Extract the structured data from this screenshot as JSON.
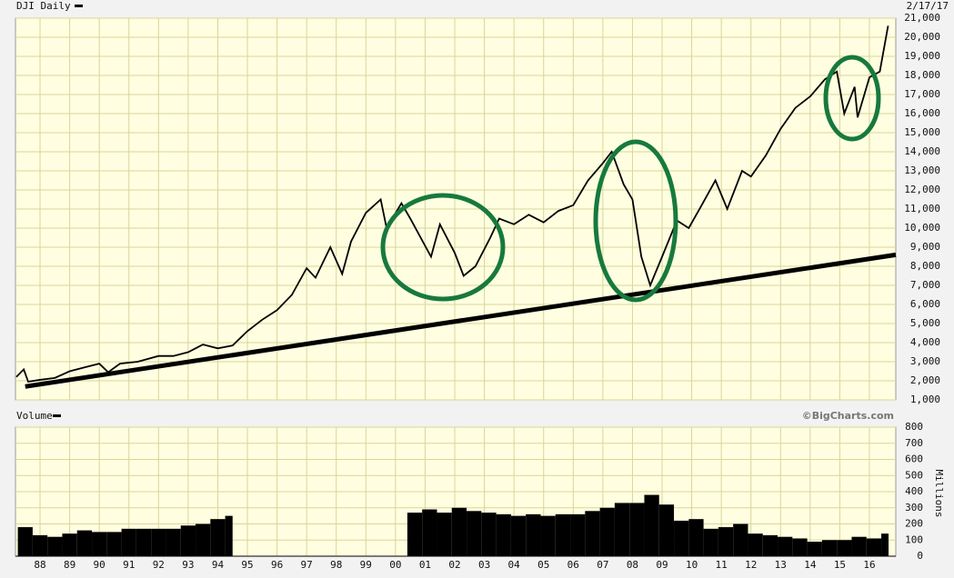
{
  "chart_data": [
    {
      "type": "line",
      "date_label": "2/17/17",
      "x": [
        1987.7,
        1987.95,
        1988.1,
        1988.5,
        1989.0,
        1989.5,
        1990.0,
        1990.5,
        1990.8,
        1991.2,
        1991.8,
        1992.5,
        1993.0,
        1993.5,
        1994.0,
        1994.5,
        1995.0,
        1995.5,
        1996.0,
        1996.5,
        1997.0,
        1997.5,
        1997.8,
        1998.3,
        1998.7,
        1999.0,
        1999.5,
        2000.0,
        2000.2,
        2000.7,
        2001.0,
        2001.7,
        2002.0,
        2002.5,
        2002.8,
        2003.2,
        2003.7,
        2004.0,
        2004.5,
        2005.0,
        2005.5,
        2006.0,
        2006.5,
        2007.0,
        2007.5,
        2007.8,
        2008.2,
        2008.5,
        2008.8,
        2009.1,
        2009.5,
        2010.0,
        2010.4,
        2010.8,
        2011.3,
        2011.7,
        2012.2,
        2012.5,
        2013.0,
        2013.5,
        2014.0,
        2014.5,
        2015.0,
        2015.4,
        2015.65,
        2016.0,
        2016.1,
        2016.5,
        2016.85,
        2017.13
      ],
      "series": [
        {
          "name": "DJI Daily",
          "color": "#000000",
          "values": [
            2200,
            2600,
            1950,
            2050,
            2150,
            2500,
            2700,
            2900,
            2450,
            2900,
            3000,
            3300,
            3300,
            3500,
            3900,
            3700,
            3850,
            4600,
            5200,
            5700,
            6500,
            7900,
            7400,
            9000,
            7600,
            9300,
            10800,
            11500,
            10000,
            11300,
            10500,
            8500,
            10200,
            8700,
            7500,
            8000,
            9500,
            10500,
            10200,
            10700,
            10300,
            10900,
            11200,
            12500,
            13400,
            14000,
            12300,
            11500,
            8500,
            7000,
            8500,
            10400,
            10000,
            11100,
            12500,
            11000,
            13000,
            12700,
            13800,
            15200,
            16300,
            16900,
            17800,
            18200,
            16000,
            17400,
            15800,
            17900,
            18200,
            20600
          ]
        }
      ],
      "trend_line": {
        "x": [
          1988.0,
          2017.39
        ],
        "values": [
          1700,
          8600
        ]
      },
      "xlim": [
        1987.67,
        2017.39
      ],
      "ylim": [
        1000,
        21000
      ],
      "yticks": [
        {
          "value": 1000,
          "label": "1,000"
        },
        {
          "value": 2000,
          "label": "2,000"
        },
        {
          "value": 3000,
          "label": "3,000"
        },
        {
          "value": 4000,
          "label": "4,000"
        },
        {
          "value": 5000,
          "label": "5,000"
        },
        {
          "value": 6000,
          "label": "6,000"
        },
        {
          "value": 7000,
          "label": "7,000"
        },
        {
          "value": 8000,
          "label": "8,000"
        },
        {
          "value": 9000,
          "label": "9,000"
        },
        {
          "value": 10000,
          "label": "10,000"
        },
        {
          "value": 11000,
          "label": "11,000"
        },
        {
          "value": 12000,
          "label": "12,000"
        },
        {
          "value": 13000,
          "label": "13,000"
        },
        {
          "value": 14000,
          "label": "14,000"
        },
        {
          "value": 15000,
          "label": "15,000"
        },
        {
          "value": 16000,
          "label": "16,000"
        },
        {
          "value": 17000,
          "label": "17,000"
        },
        {
          "value": 18000,
          "label": "18,000"
        },
        {
          "value": 19000,
          "label": "19,000"
        },
        {
          "value": 20000,
          "label": "20,000"
        },
        {
          "value": 21000,
          "label": "21,000"
        }
      ],
      "grid": true
    },
    {
      "type": "bar",
      "y_label": "Millions",
      "credit": "©BigCharts.com",
      "x": [
        1987.75,
        1988.25,
        1988.75,
        1989.25,
        1989.75,
        1990.25,
        1990.75,
        1991.25,
        1991.75,
        1992.25,
        1992.75,
        1993.25,
        1993.75,
        1994.25,
        1994.75,
        1995.0,
        2000.9,
        2001.4,
        2001.9,
        2002.4,
        2002.9,
        2003.4,
        2003.9,
        2004.4,
        2004.9,
        2005.4,
        2005.9,
        2006.4,
        2006.9,
        2007.4,
        2007.9,
        2008.4,
        2008.9,
        2009.4,
        2009.9,
        2010.4,
        2010.9,
        2011.4,
        2011.9,
        2012.4,
        2012.9,
        2013.4,
        2013.9,
        2014.4,
        2014.9,
        2015.4,
        2015.9,
        2016.4,
        2016.9
      ],
      "series": [
        {
          "name": "Volume",
          "color": "#000000",
          "values": [
            180,
            130,
            120,
            140,
            160,
            150,
            150,
            170,
            170,
            170,
            170,
            190,
            200,
            230,
            250,
            null,
            270,
            290,
            270,
            300,
            280,
            270,
            260,
            250,
            260,
            250,
            260,
            260,
            280,
            300,
            330,
            330,
            380,
            320,
            220,
            230,
            170,
            180,
            200,
            140,
            130,
            120,
            110,
            90,
            100,
            100,
            120,
            110,
            140
          ]
        }
      ],
      "xlim": [
        1987.67,
        2017.39
      ],
      "ylim": [
        0,
        800
      ],
      "yticks": [
        0,
        100,
        200,
        300,
        400,
        500,
        600,
        700,
        800
      ],
      "xticks": [
        {
          "value": 1988.5,
          "label": "88"
        },
        {
          "value": 1989.5,
          "label": "89"
        },
        {
          "value": 1990.5,
          "label": "90"
        },
        {
          "value": 1991.5,
          "label": "91"
        },
        {
          "value": 1992.5,
          "label": "92"
        },
        {
          "value": 1993.5,
          "label": "93"
        },
        {
          "value": 1994.5,
          "label": "94"
        },
        {
          "value": 1995.5,
          "label": "95"
        },
        {
          "value": 1996.5,
          "label": "96"
        },
        {
          "value": 1997.5,
          "label": "97"
        },
        {
          "value": 1998.5,
          "label": "98"
        },
        {
          "value": 1999.5,
          "label": "99"
        },
        {
          "value": 2000.5,
          "label": "00"
        },
        {
          "value": 2001.5,
          "label": "01"
        },
        {
          "value": 2002.5,
          "label": "02"
        },
        {
          "value": 2003.5,
          "label": "03"
        },
        {
          "value": 2004.5,
          "label": "04"
        },
        {
          "value": 2005.5,
          "label": "05"
        },
        {
          "value": 2006.5,
          "label": "06"
        },
        {
          "value": 2007.5,
          "label": "07"
        },
        {
          "value": 2008.5,
          "label": "08"
        },
        {
          "value": 2009.5,
          "label": "09"
        },
        {
          "value": 2010.5,
          "label": "10"
        },
        {
          "value": 2011.5,
          "label": "11"
        },
        {
          "value": 2012.5,
          "label": "12"
        },
        {
          "value": 2013.5,
          "label": "13"
        },
        {
          "value": 2014.5,
          "label": "14"
        },
        {
          "value": 2015.5,
          "label": "15"
        },
        {
          "value": 2016.5,
          "label": "16"
        }
      ],
      "grid": true
    }
  ]
}
